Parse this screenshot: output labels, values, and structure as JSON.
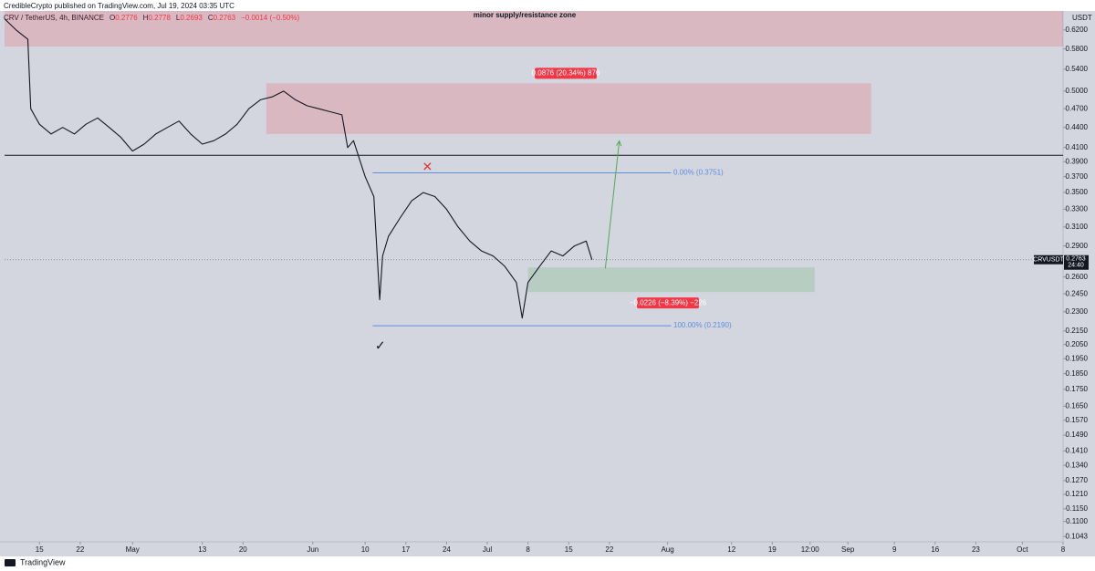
{
  "chart_data": {
    "type": "line",
    "publisher": "CredibleCrypto published on TradingView.com, Jul 19, 2024 03:35 UTC",
    "symbol": "CRV / TetherUS, 4h, BINANCE",
    "ohlc": [
      {
        "label": "O",
        "value": 0.2776
      },
      {
        "label": "H",
        "value": 0.2778
      },
      {
        "label": "L",
        "value": 0.2693
      },
      {
        "label": "C",
        "value": 0.2763
      }
    ],
    "change": "−0.0014 (−0.50%)",
    "axis_unit": "USDT",
    "footer": "TradingView",
    "color": "#131722",
    "log_y": true,
    "grid": false,
    "x": [
      -6,
      -4,
      -2,
      -1.5,
      0,
      2,
      4,
      6,
      8,
      10,
      12,
      14,
      16,
      18,
      20,
      22,
      24,
      26,
      28,
      30,
      32,
      34,
      36,
      38,
      40,
      42,
      44,
      46,
      48,
      50,
      52,
      53,
      54,
      56,
      57.5,
      58.5,
      59,
      60,
      62,
      64,
      66,
      68,
      70,
      72,
      74,
      76,
      78,
      80,
      82,
      83,
      84,
      86,
      88,
      90,
      92,
      94,
      95
    ],
    "values": [
      0.645,
      0.62,
      0.6,
      0.47,
      0.445,
      0.43,
      0.44,
      0.43,
      0.445,
      0.455,
      0.44,
      0.425,
      0.405,
      0.415,
      0.43,
      0.44,
      0.45,
      0.43,
      0.415,
      0.42,
      0.43,
      0.445,
      0.47,
      0.485,
      0.49,
      0.5,
      0.485,
      0.475,
      0.47,
      0.465,
      0.46,
      0.41,
      0.42,
      0.37,
      0.345,
      0.24,
      0.28,
      0.3,
      0.32,
      0.34,
      0.35,
      0.345,
      0.33,
      0.31,
      0.295,
      0.285,
      0.28,
      0.27,
      0.255,
      0.225,
      0.255,
      0.27,
      0.285,
      0.28,
      0.29,
      0.295,
      0.2763
    ],
    "xlim": [
      -6,
      176
    ],
    "ylim": [
      0.1024,
      0.663
    ],
    "yticks": [
      {
        "value": 0.62,
        "label": "0.6200"
      },
      {
        "value": 0.58,
        "label": "0.5800"
      },
      {
        "value": 0.54,
        "label": "0.5400"
      },
      {
        "value": 0.5,
        "label": "0.5000"
      },
      {
        "value": 0.47,
        "label": "0.4700"
      },
      {
        "value": 0.44,
        "label": "0.4400"
      },
      {
        "value": 0.41,
        "label": "0.4100"
      },
      {
        "value": 0.39,
        "label": "0.3900"
      },
      {
        "value": 0.37,
        "label": "0.3700"
      },
      {
        "value": 0.35,
        "label": "0.3500"
      },
      {
        "value": 0.33,
        "label": "0.3300"
      },
      {
        "value": 0.31,
        "label": "0.3100"
      },
      {
        "value": 0.29,
        "label": "0.2900"
      },
      {
        "value": 0.26,
        "label": "0.2600"
      },
      {
        "value": 0.245,
        "label": "0.2450"
      },
      {
        "value": 0.23,
        "label": "0.2300"
      },
      {
        "value": 0.215,
        "label": "0.2150"
      },
      {
        "value": 0.205,
        "label": "0.2050"
      },
      {
        "value": 0.195,
        "label": "0.1950"
      },
      {
        "value": 0.185,
        "label": "0.1850"
      },
      {
        "value": 0.175,
        "label": "0.1750"
      },
      {
        "value": 0.165,
        "label": "0.1650"
      },
      {
        "value": 0.157,
        "label": "0.1570"
      },
      {
        "value": 0.149,
        "label": "0.1490"
      },
      {
        "value": 0.141,
        "label": "0.1410"
      },
      {
        "value": 0.134,
        "label": "0.1340"
      },
      {
        "value": 0.127,
        "label": "0.1270"
      },
      {
        "value": 0.121,
        "label": "0.1210"
      },
      {
        "value": 0.115,
        "label": "0.1150"
      },
      {
        "value": 0.11,
        "label": "0.1100"
      },
      0.1043
    ],
    "xticks": [
      {
        "value": 0,
        "label": "15"
      },
      {
        "value": 7,
        "label": "22"
      },
      {
        "value": 16,
        "label": "May"
      },
      {
        "value": 28,
        "label": "13"
      },
      {
        "value": 35,
        "label": "20"
      },
      {
        "value": 47,
        "label": "Jun"
      },
      {
        "value": 56,
        "label": "10"
      },
      {
        "value": 63,
        "label": "17"
      },
      {
        "value": 70,
        "label": "24"
      },
      {
        "value": 77,
        "label": "Jul"
      },
      {
        "value": 84,
        "label": "8"
      },
      {
        "value": 91,
        "label": "15"
      },
      {
        "value": 98,
        "label": "22"
      },
      {
        "value": 108,
        "label": "Aug"
      },
      {
        "value": 119,
        "label": "12"
      },
      {
        "value": 126,
        "label": "19"
      },
      {
        "value": 132.5,
        "label": "12:00"
      },
      {
        "value": 139,
        "label": "Sep"
      },
      {
        "value": 147,
        "label": "9"
      },
      {
        "value": 154,
        "label": "16"
      },
      {
        "value": 161,
        "label": "23"
      },
      {
        "value": 169,
        "label": "Oct"
      },
      {
        "value": 176,
        "label": "8"
      }
    ],
    "last_price": 0.2763,
    "symbol_tag": "CRVUSDT",
    "countdown": "24:40",
    "hline": {
      "value": 0.399,
      "color": "#131722"
    },
    "zones": [
      {
        "x": [
          -6,
          176
        ],
        "y": [
          0.585,
          0.663
        ],
        "color": "rgba(242,54,69,0.18)",
        "label": "minor supply/resistance zone"
      },
      {
        "x": [
          39,
          143
        ],
        "y": [
          0.43,
          0.514
        ],
        "color": "rgba(242,54,69,0.18)",
        "label": "0.0876 (20.34%) 876"
      },
      {
        "x": [
          84,
          133.3
        ],
        "y": [
          0.2466,
          0.269
        ],
        "color": "rgba(76,175,80,0.2)",
        "label": "−0.0226 (−8.39%) −226"
      }
    ],
    "levels": [
      {
        "value": 0.3751,
        "x": [
          57.3,
          108.6
        ],
        "color": "#5b8fe0",
        "label": "0.00% (0.3751)"
      },
      {
        "value": 0.219,
        "x": [
          57.3,
          108.6
        ],
        "color": "#5b8fe0",
        "label": "100.00% (0.2190)"
      }
    ],
    "arrow": {
      "x": [
        97.3,
        99.7
      ],
      "y": [
        0.268,
        0.4197
      ],
      "color": "#4caf50"
    },
    "marks": [
      {
        "symbol": "✕",
        "x": 66.7,
        "y": 0.382,
        "color": "#e53935"
      },
      {
        "symbol": "✓",
        "x": 58.6,
        "y": 0.2037,
        "color": "#131722"
      }
    ]
  }
}
